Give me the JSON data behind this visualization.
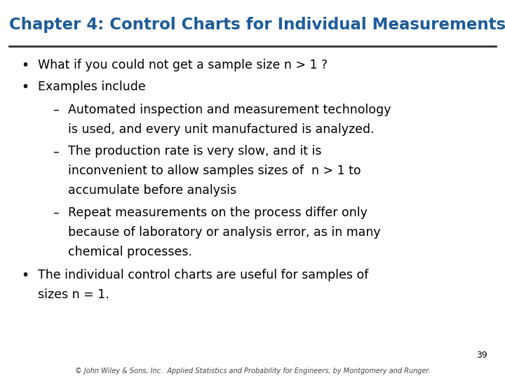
{
  "title": "Chapter 4: Control Charts for Individual Measurements",
  "title_color": "#1F5C99",
  "title_fontsize": 16.5,
  "bg_color": "#FFFFFF",
  "line_color": "#2F2F2F",
  "body_color": "#000000",
  "body_fontsize": 12.5,
  "bullet1": "What if you could not get a sample size n > 1 ?",
  "bullet2": "Examples include",
  "sub1_line1": "Automated inspection and measurement technology",
  "sub1_line2": "is used, and every unit manufactured is analyzed.",
  "sub2_line1": "The production rate is very slow, and it is",
  "sub2_line2": "inconvenient to allow samples sizes of  n > 1 to",
  "sub2_line3": "accumulate before analysis",
  "sub3_line1": "Repeat measurements on the process differ only",
  "sub3_line2": "because of laboratory or analysis error, as in many",
  "sub3_line3": "chemical processes.",
  "bullet3_line1": "The individual control charts are useful for samples of",
  "bullet3_line2": "sizes n = 1.",
  "page_number": "39",
  "footer": "© John Wiley & Sons, Inc.  Applied Statistics and Probability for Engineers, by Montgomery and Runger."
}
